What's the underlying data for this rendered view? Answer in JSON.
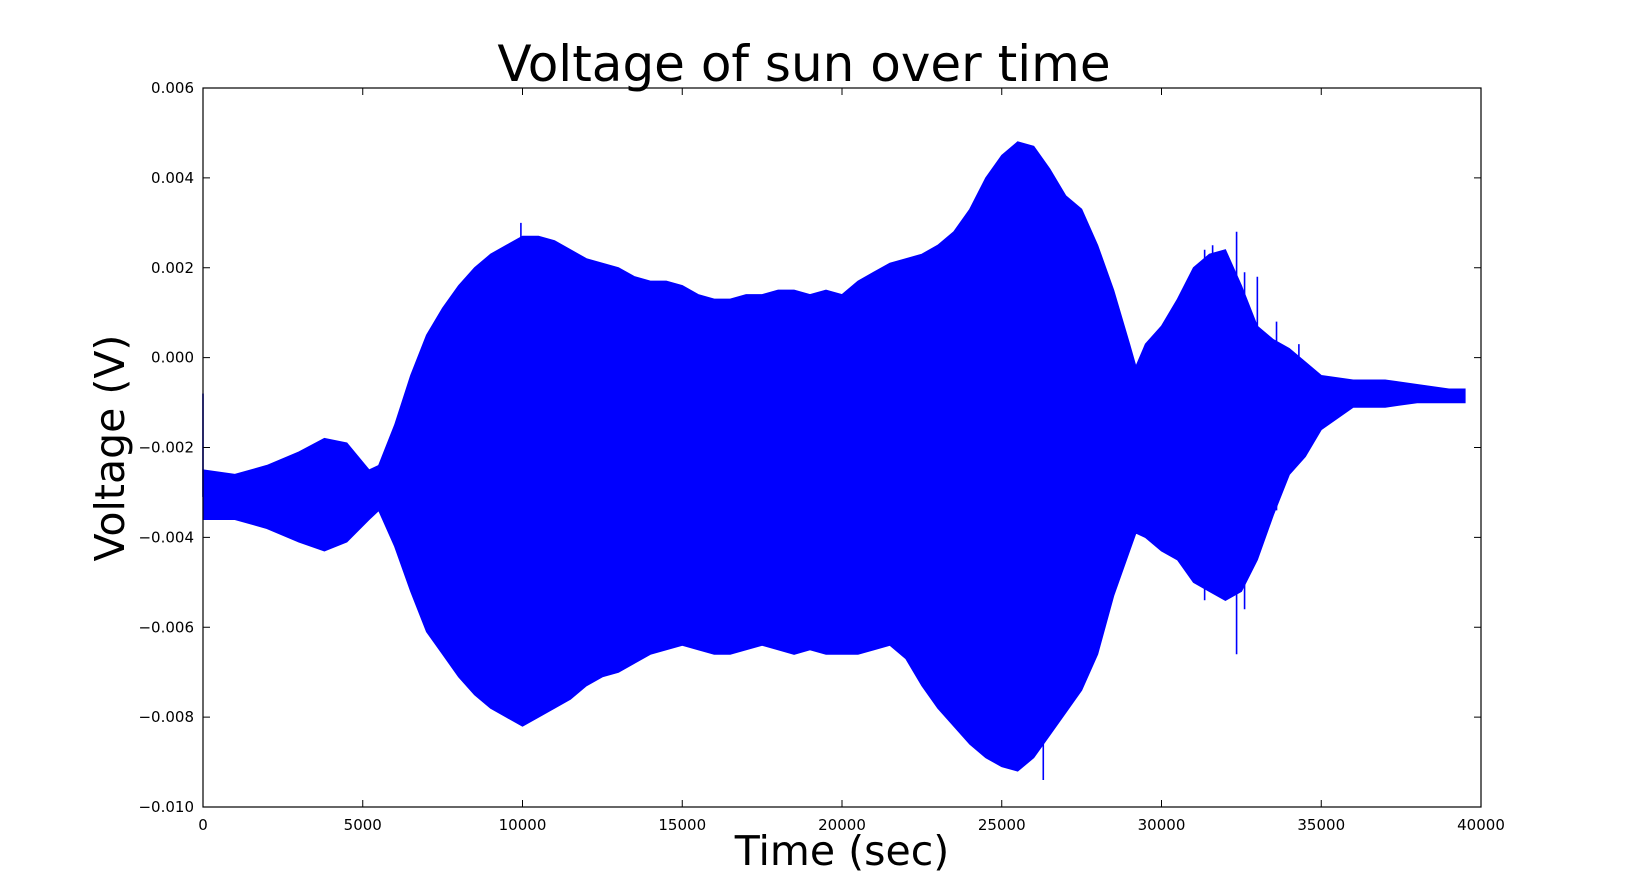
{
  "chart_data": {
    "type": "line",
    "title": "Voltage of sun over time",
    "xlabel": "Time (sec)",
    "ylabel": "Voltage (V)",
    "xlim": [
      0,
      40000
    ],
    "ylim": [
      -0.01,
      0.006
    ],
    "x_ticks": [
      "0",
      "5000",
      "10000",
      "15000",
      "20000",
      "25000",
      "30000",
      "35000",
      "40000"
    ],
    "y_ticks": [
      "0.006",
      "0.004",
      "0.002",
      "0.000",
      "−0.002",
      "−0.004",
      "−0.006",
      "−0.008",
      "−0.010"
    ],
    "grid": false,
    "line_color": "#0000ff",
    "series": [
      {
        "x": [
          0,
          1000,
          2000,
          3000,
          3800,
          4500,
          5200,
          5500,
          6000,
          6500,
          7000,
          7500,
          8000,
          8500,
          9000,
          9500,
          10000,
          10500,
          11000,
          11500,
          12000,
          12500,
          13000,
          13500,
          14000,
          14500,
          15000,
          15500,
          16000,
          16500,
          17000,
          17500,
          18000,
          18500,
          19000,
          19500,
          20000,
          20500,
          21000,
          21500,
          22000,
          22500,
          23000,
          23500,
          24000,
          24500,
          25000,
          25500,
          26000,
          26500,
          27000,
          27500,
          28000,
          28500,
          29000,
          29200,
          29500,
          30000,
          30500,
          31000,
          31500,
          32000,
          32500,
          33000,
          33500,
          34000,
          34500,
          35000,
          36000,
          37000,
          38000,
          39000,
          39500
        ],
        "upper": [
          -0.0025,
          -0.0026,
          -0.0024,
          -0.0021,
          -0.0018,
          -0.0019,
          -0.0025,
          -0.0024,
          -0.0015,
          -0.0004,
          0.0005,
          0.0011,
          0.0016,
          0.002,
          0.0023,
          0.0025,
          0.0027,
          0.0027,
          0.0026,
          0.0024,
          0.0022,
          0.0021,
          0.002,
          0.0018,
          0.0017,
          0.0017,
          0.0016,
          0.0014,
          0.0013,
          0.0013,
          0.0014,
          0.0014,
          0.0015,
          0.0015,
          0.0014,
          0.0015,
          0.0014,
          0.0017,
          0.0019,
          0.0021,
          0.0022,
          0.0023,
          0.0025,
          0.0028,
          0.0033,
          0.004,
          0.0045,
          0.0048,
          0.0047,
          0.0042,
          0.0036,
          0.0033,
          0.0025,
          0.0015,
          0.0003,
          -0.0002,
          0.0003,
          0.0007,
          0.0013,
          0.002,
          0.0023,
          0.0024,
          0.0016,
          0.0007,
          0.0004,
          0.0002,
          -0.0001,
          -0.0004,
          -0.0005,
          -0.0005,
          -0.0006,
          -0.0007,
          -0.0007
        ],
        "lower": [
          -0.0036,
          -0.0036,
          -0.0038,
          -0.0041,
          -0.0043,
          -0.0041,
          -0.0036,
          -0.0034,
          -0.0042,
          -0.0052,
          -0.0061,
          -0.0066,
          -0.0071,
          -0.0075,
          -0.0078,
          -0.008,
          -0.0082,
          -0.008,
          -0.0078,
          -0.0076,
          -0.0073,
          -0.0071,
          -0.007,
          -0.0068,
          -0.0066,
          -0.0065,
          -0.0064,
          -0.0065,
          -0.0066,
          -0.0066,
          -0.0065,
          -0.0064,
          -0.0065,
          -0.0066,
          -0.0065,
          -0.0066,
          -0.0066,
          -0.0066,
          -0.0065,
          -0.0064,
          -0.0067,
          -0.0073,
          -0.0078,
          -0.0082,
          -0.0086,
          -0.0089,
          -0.0091,
          -0.0092,
          -0.0089,
          -0.0084,
          -0.0079,
          -0.0074,
          -0.0066,
          -0.0053,
          -0.0043,
          -0.0039,
          -0.004,
          -0.0043,
          -0.0045,
          -0.005,
          -0.0052,
          -0.0054,
          -0.0052,
          -0.0045,
          -0.0035,
          -0.0026,
          -0.0022,
          -0.0016,
          -0.0011,
          -0.0011,
          -0.001,
          -0.001,
          -0.001
        ],
        "spikes": [
          [
            0,
            -0.0008,
            -0.0031
          ],
          [
            9950,
            0.003,
            -0.0025
          ],
          [
            26300,
            0.0041,
            -0.0094
          ],
          [
            30800,
            0.0017,
            -0.004
          ],
          [
            31350,
            0.0024,
            -0.0054
          ],
          [
            31600,
            0.0025,
            -0.0048
          ],
          [
            32050,
            0.0021,
            -0.005
          ],
          [
            32350,
            0.0028,
            -0.0066
          ],
          [
            32600,
            0.0019,
            -0.0056
          ],
          [
            33000,
            0.0018,
            -0.0033
          ],
          [
            33600,
            0.0008,
            -0.0034
          ],
          [
            34300,
            0.0003,
            -0.0022
          ]
        ]
      }
    ]
  }
}
